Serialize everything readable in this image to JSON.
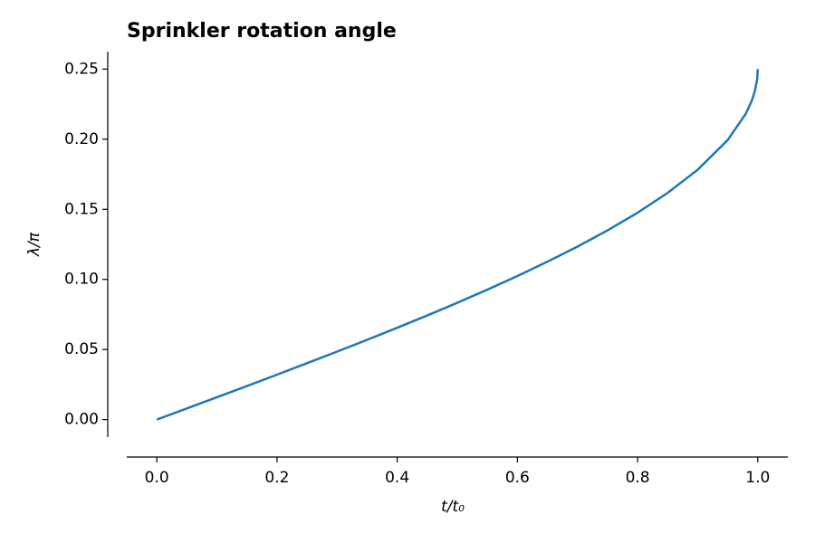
{
  "chart_data": {
    "type": "line",
    "title": "Sprinkler rotation angle",
    "x_label": "t/t₀",
    "y_label": "λ/π",
    "x": [
      0,
      0.05,
      0.1,
      0.15,
      0.2,
      0.25,
      0.3,
      0.35,
      0.4,
      0.45,
      0.5,
      0.55,
      0.6,
      0.65,
      0.7,
      0.75,
      0.8,
      0.85,
      0.9,
      0.95,
      0.98,
      0.99,
      0.995,
      0.999,
      1.0
    ],
    "series": [
      {
        "color": "#1f77b4",
        "values": [
          0,
          0.00796,
          0.01594,
          0.02396,
          0.03205,
          0.04022,
          0.04849,
          0.05691,
          0.0655,
          0.07429,
          0.08333,
          0.09269,
          0.10242,
          0.11262,
          0.12341,
          0.13497,
          0.14758,
          0.1617,
          0.17822,
          0.19946,
          0.21812,
          0.22747,
          0.23408,
          0.24288,
          0.25
        ]
      }
    ],
    "xlim": [
      -0.05,
      1.05
    ],
    "ylim": [
      -0.0125,
      0.2625
    ],
    "xticks": [
      {
        "value": 0,
        "label": "0.0"
      },
      0.2,
      0.4,
      0.6,
      0.8,
      {
        "value": 1,
        "label": "1.0"
      }
    ],
    "yticks": [
      {
        "value": 0,
        "label": "0.00"
      },
      0.05,
      {
        "value": 0.1,
        "label": "0.10"
      },
      0.15,
      {
        "value": 0.2,
        "label": "0.20"
      },
      0.25
    ],
    "grid": false
  }
}
